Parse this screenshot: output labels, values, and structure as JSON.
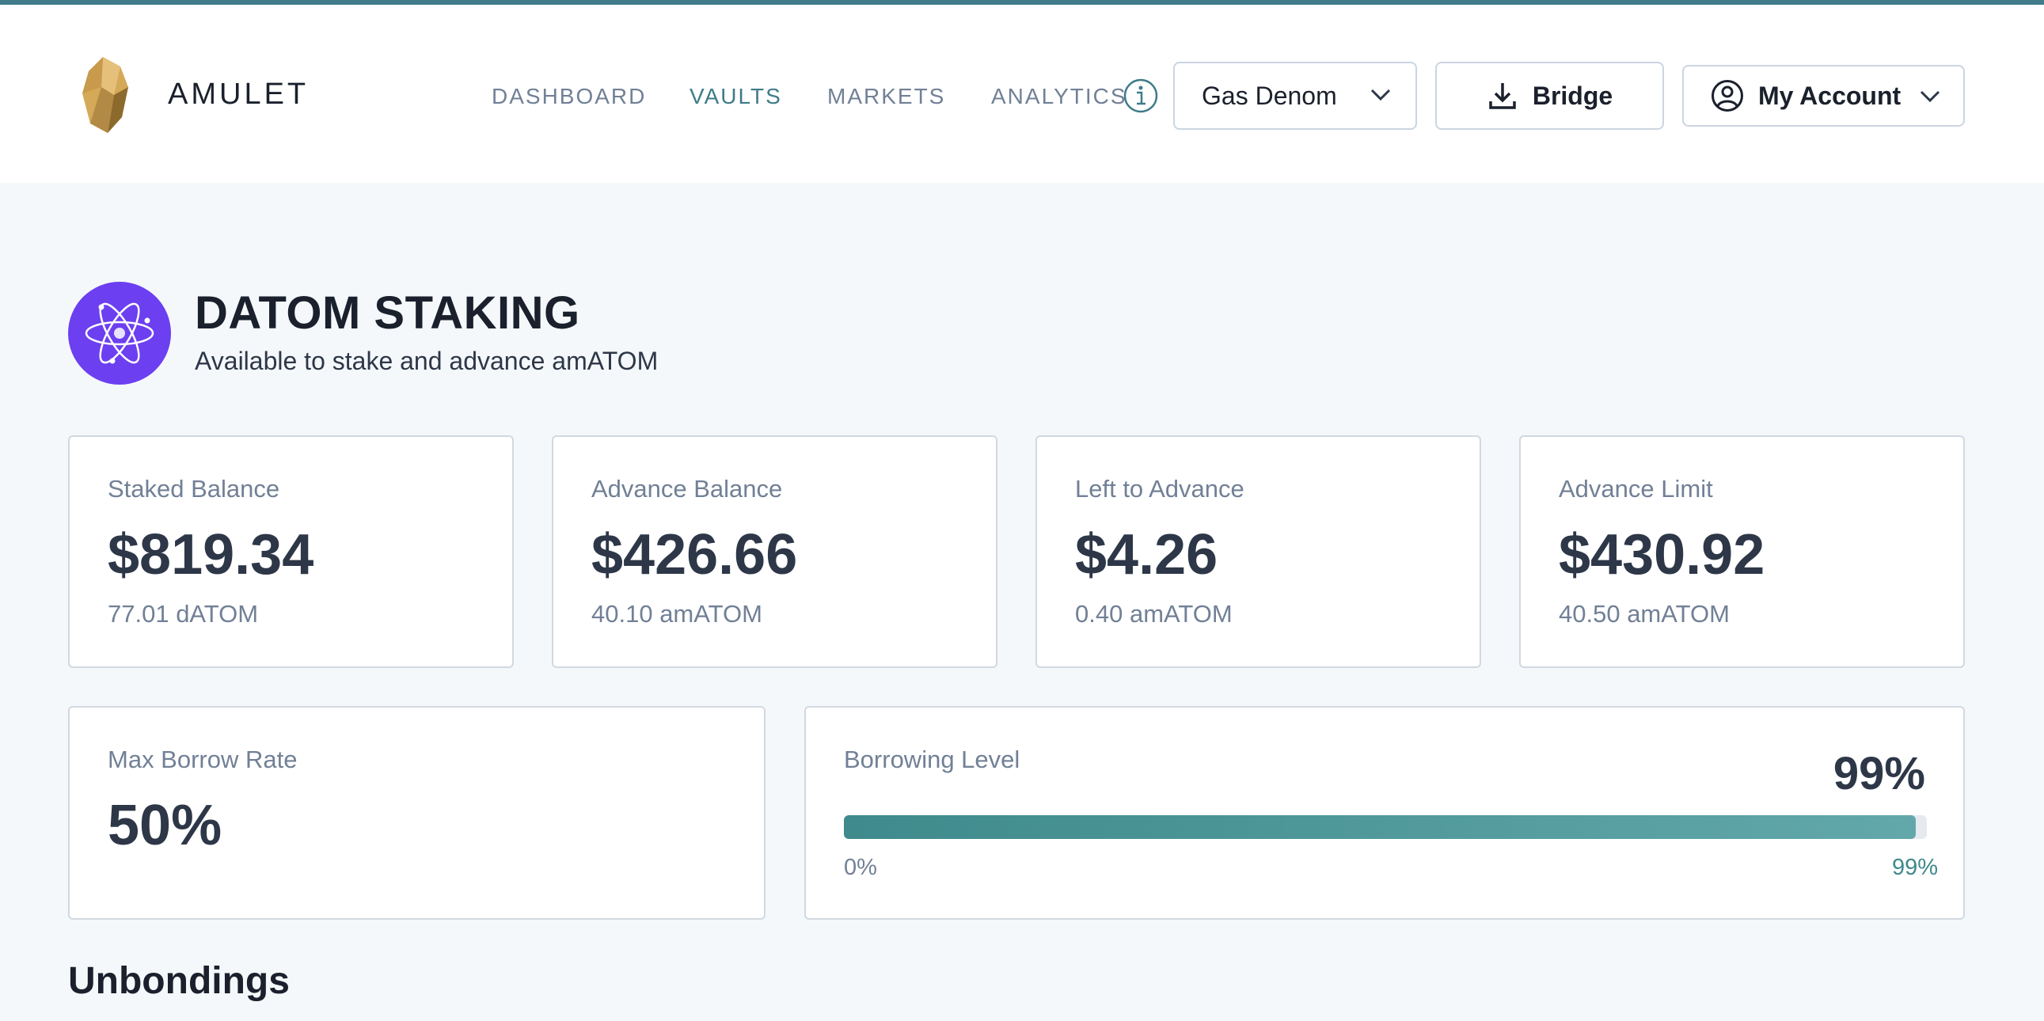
{
  "header": {
    "brand": "AMULET",
    "nav": [
      {
        "label": "DASHBOARD",
        "active": false
      },
      {
        "label": "VAULTS",
        "active": true
      },
      {
        "label": "MARKETS",
        "active": false
      },
      {
        "label": "ANALYTICS",
        "active": false
      }
    ],
    "gas_select": "Gas Denom",
    "bridge_label": "Bridge",
    "account_label": "My Account"
  },
  "vault": {
    "title": "DATOM STAKING",
    "subtitle": "Available to stake and advance amATOM",
    "icon": "atom-icon",
    "icon_color": "#6c3ff0"
  },
  "stats": [
    {
      "label": "Staked Balance",
      "value": "$819.34",
      "sub": "77.01 dATOM"
    },
    {
      "label": "Advance Balance",
      "value": "$426.66",
      "sub": "40.10 amATOM"
    },
    {
      "label": "Left to Advance",
      "value": "$4.26",
      "sub": "0.40 amATOM"
    },
    {
      "label": "Advance Limit",
      "value": "$430.92",
      "sub": "40.50 amATOM"
    }
  ],
  "max_borrow": {
    "label": "Max Borrow Rate",
    "value": "50%"
  },
  "borrowing_level": {
    "label": "Borrowing Level",
    "value": "99%",
    "fraction": 0.99,
    "min_label": "0%",
    "max_label": "99%"
  },
  "sections": {
    "unbondings": "Unbondings"
  },
  "colors": {
    "accent": "#3f7b89",
    "progress": "#4a9496",
    "vault_icon": "#6c3ff0"
  }
}
